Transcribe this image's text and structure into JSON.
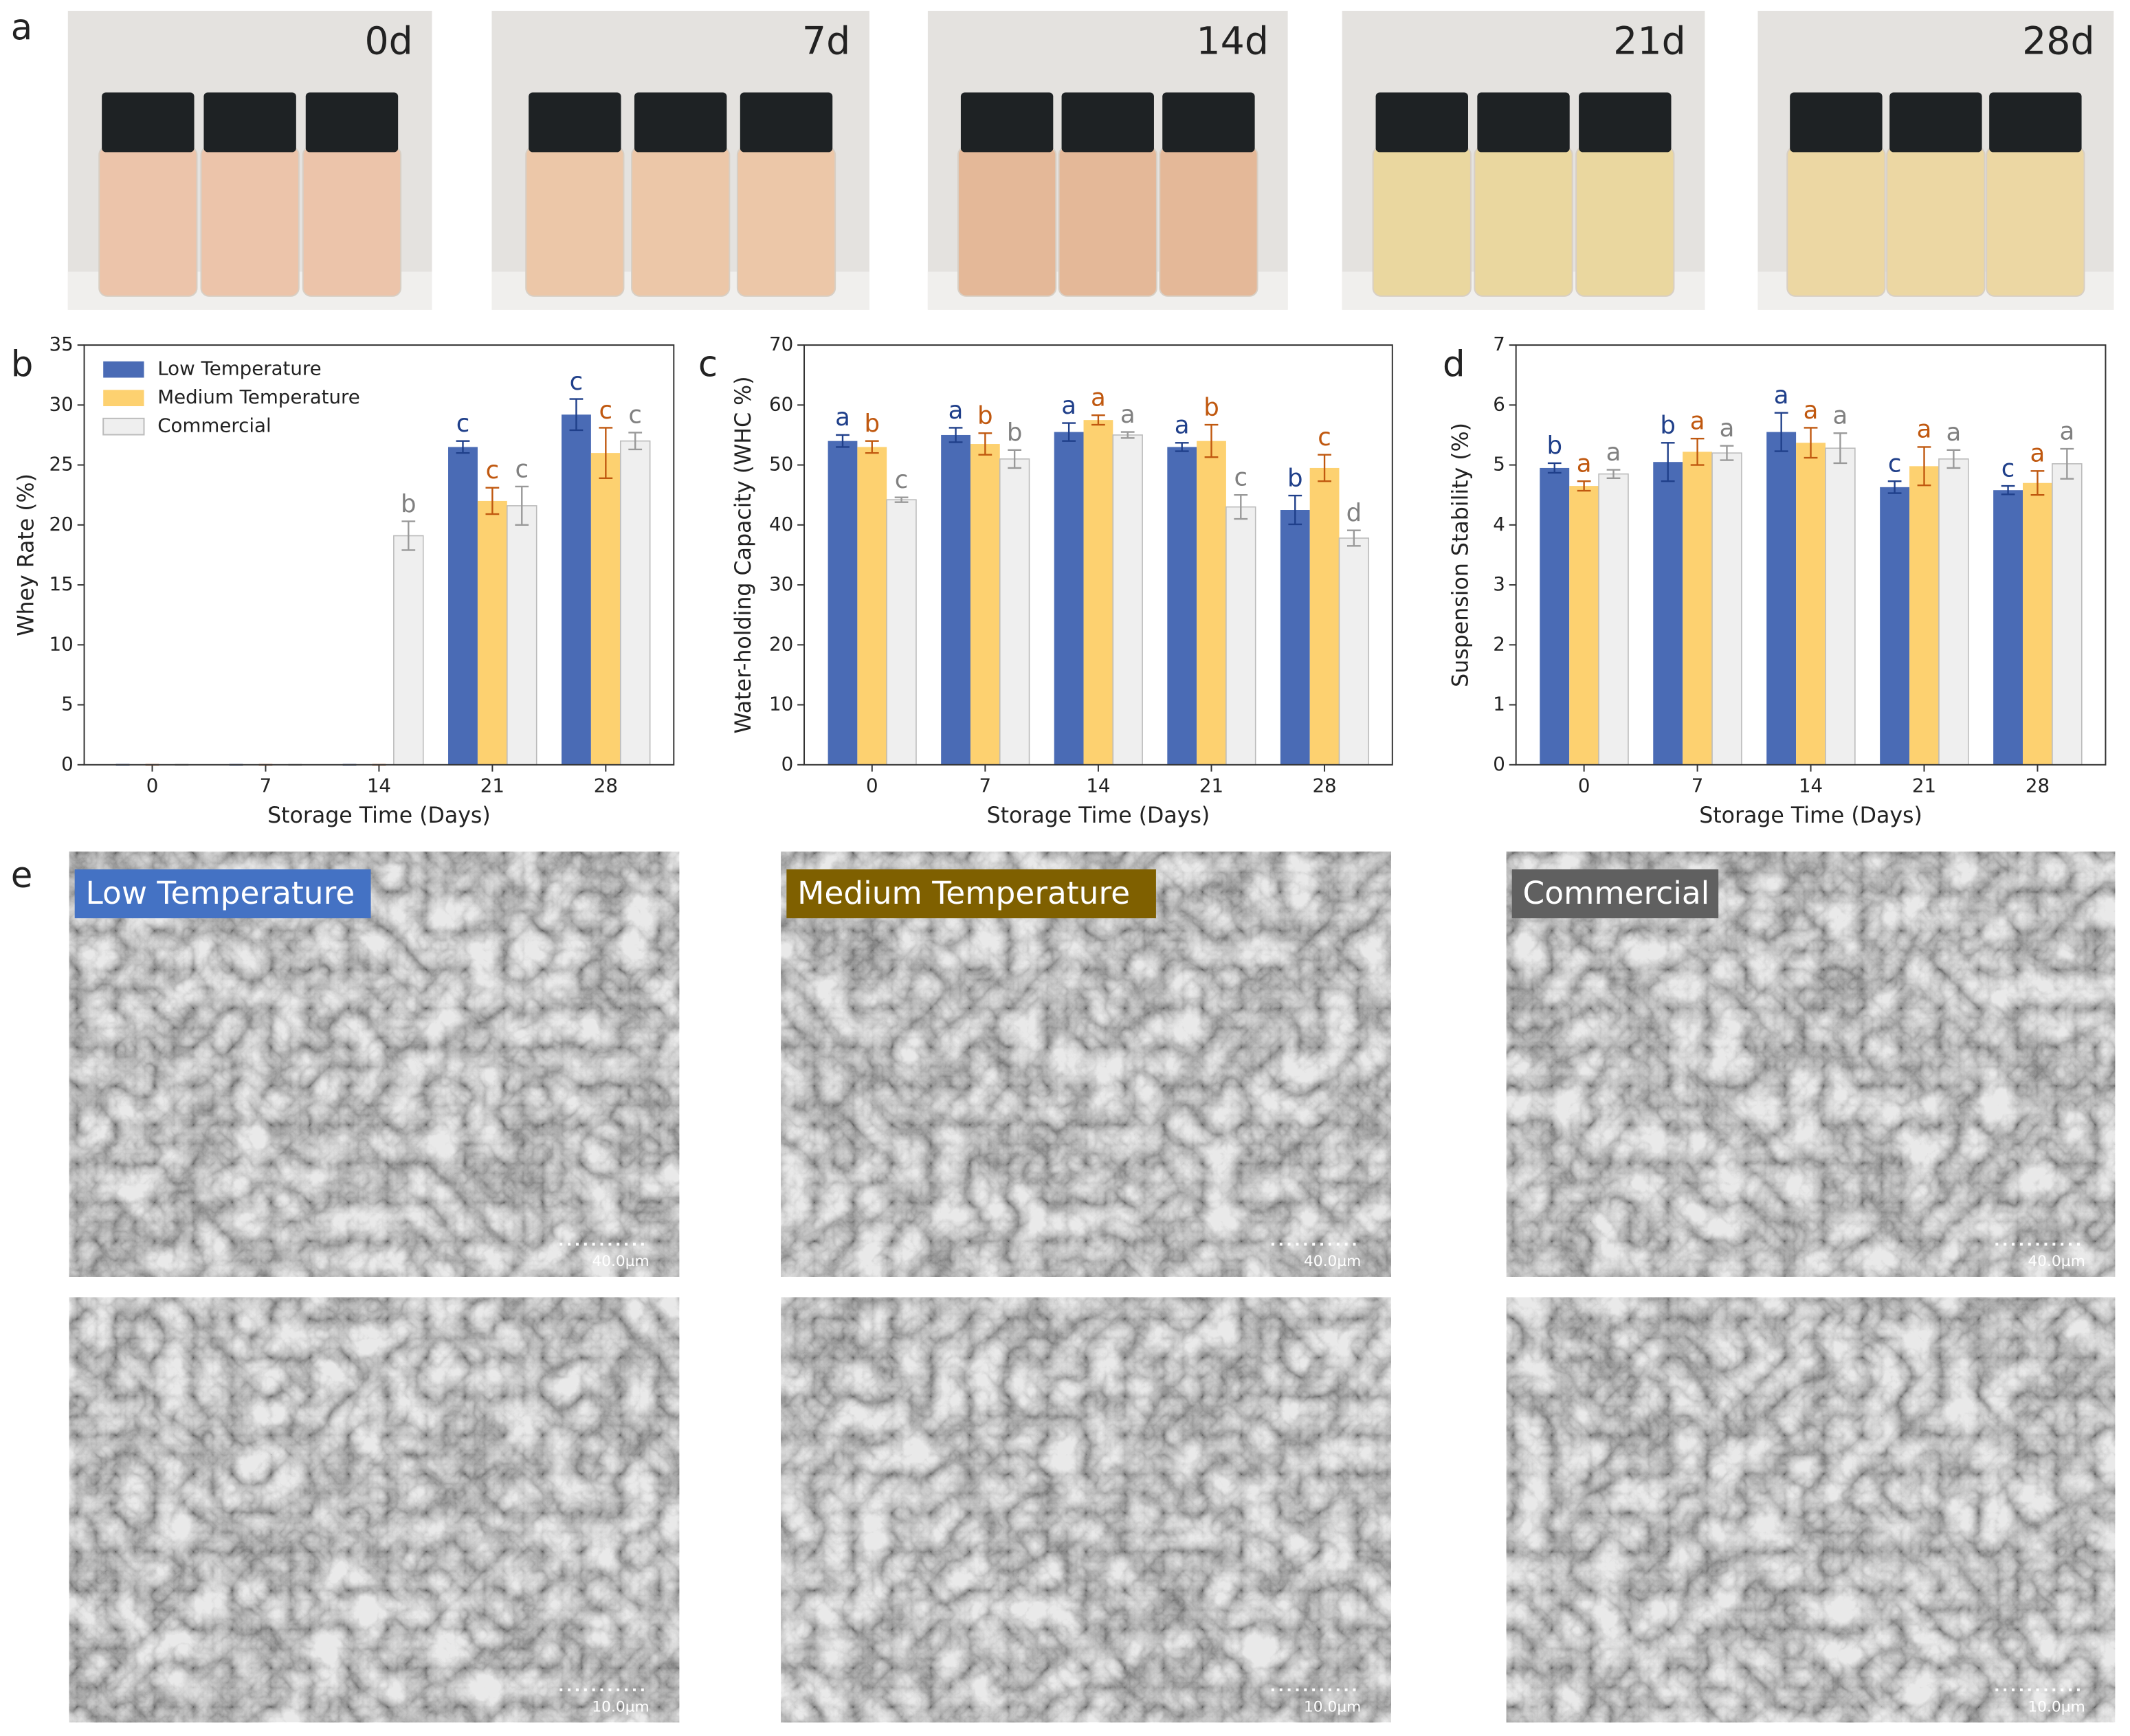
{
  "photos": {
    "panel": "a",
    "labels": [
      "0d",
      "7d",
      "14d",
      "21d",
      "28d"
    ]
  },
  "chart_data": [
    {
      "type": "bar",
      "panel": "b",
      "ylabel": "Whey Rate (%)",
      "xlabel": "Storage Time (Days)",
      "categories": [
        "0",
        "7",
        "14",
        "21",
        "28"
      ],
      "ylim": [
        0,
        35
      ],
      "yticks": [
        0,
        5,
        10,
        15,
        20,
        25,
        30,
        35
      ],
      "legend": "upper left",
      "series": [
        {
          "name": "Low Temperature",
          "color": "#4a6bb5",
          "label_color": "#1f3f8a",
          "values": [
            0,
            0,
            0,
            26.5,
            29.2
          ],
          "errors": [
            0,
            0,
            0,
            0.5,
            1.3
          ],
          "labels": [
            null,
            null,
            null,
            "c",
            "c"
          ]
        },
        {
          "name": "Medium Temperature",
          "color": "#fdd170",
          "label_color": "#c0580f",
          "values": [
            0,
            0,
            0,
            22,
            26
          ],
          "errors": [
            0,
            0,
            0,
            1.1,
            2.1
          ],
          "labels": [
            null,
            null,
            null,
            "c",
            "c"
          ]
        },
        {
          "name": "Commercial",
          "color": "#efefef",
          "label_color": "#808080",
          "values": [
            0,
            0,
            19.1,
            21.6,
            27
          ],
          "errors": [
            0,
            0,
            1.2,
            1.6,
            0.7
          ],
          "labels": [
            null,
            null,
            "b",
            "c",
            "c"
          ]
        }
      ]
    },
    {
      "type": "bar",
      "panel": "c",
      "ylabel": "Water-holding Capacity (WHC %)",
      "xlabel": "Storage Time (Days)",
      "categories": [
        "0",
        "7",
        "14",
        "21",
        "28"
      ],
      "ylim": [
        0,
        70
      ],
      "yticks": [
        0,
        10,
        20,
        30,
        40,
        50,
        60,
        70
      ],
      "series": [
        {
          "color": "#4a6bb5",
          "label_color": "#1f3f8a",
          "values": [
            54,
            55,
            55.5,
            53,
            42.5
          ],
          "errors": [
            1,
            1.2,
            1.5,
            0.7,
            2.4
          ],
          "labels": [
            "a",
            "a",
            "a",
            "a",
            "b"
          ]
        },
        {
          "color": "#fdd170",
          "label_color": "#c0580f",
          "values": [
            53,
            53.5,
            57.5,
            54,
            49.5
          ],
          "errors": [
            1,
            1.8,
            0.8,
            2.7,
            2.2
          ],
          "labels": [
            "b",
            "b",
            "a",
            "b",
            "c"
          ]
        },
        {
          "color": "#efefef",
          "label_color": "#808080",
          "values": [
            44.2,
            51,
            55,
            43,
            37.8
          ],
          "errors": [
            0.4,
            1.5,
            0.5,
            2,
            1.3
          ],
          "labels": [
            "c",
            "b",
            "a",
            "c",
            "d"
          ]
        }
      ]
    },
    {
      "type": "bar",
      "panel": "d",
      "ylabel": "Suspension Stability (%)",
      "xlabel": "Storage Time (Days)",
      "categories": [
        "0",
        "7",
        "14",
        "21",
        "28"
      ],
      "ylim": [
        0,
        7
      ],
      "yticks": [
        0,
        1,
        2,
        3,
        4,
        5,
        6,
        7
      ],
      "series": [
        {
          "color": "#4a6bb5",
          "label_color": "#1f3f8a",
          "values": [
            4.95,
            5.05,
            5.55,
            4.63,
            4.58
          ],
          "errors": [
            0.08,
            0.32,
            0.32,
            0.1,
            0.07
          ],
          "labels": [
            "b",
            "b",
            "a",
            "c",
            "c"
          ]
        },
        {
          "color": "#fdd170",
          "label_color": "#c0580f",
          "values": [
            4.65,
            5.22,
            5.37,
            4.98,
            4.7
          ],
          "errors": [
            0.08,
            0.22,
            0.25,
            0.32,
            0.2
          ],
          "labels": [
            "a",
            "a",
            "a",
            "a",
            "a"
          ]
        },
        {
          "color": "#efefef",
          "label_color": "#808080",
          "values": [
            4.85,
            5.2,
            5.28,
            5.1,
            5.02
          ],
          "errors": [
            0.07,
            0.12,
            0.25,
            0.15,
            0.25
          ],
          "labels": [
            "a",
            "a",
            "a",
            "a",
            "a"
          ]
        }
      ]
    }
  ],
  "sem": {
    "panel": "e",
    "samples": [
      "Low Temperature",
      "Medium Temperature",
      "Commercial"
    ],
    "label_colors": [
      "#4472c4",
      "#7f6000",
      "#606060"
    ],
    "scale_bars": [
      "40.0µm",
      "10.0µm"
    ]
  }
}
